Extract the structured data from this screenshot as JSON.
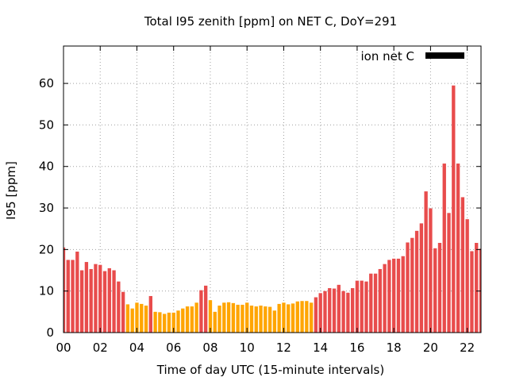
{
  "chart_data": {
    "type": "bar",
    "title": "Total I95 zenith [ppm] on NET C, DoY=291",
    "xlabel": "Time of day UTC (15-minute intervals)",
    "ylabel": "I95 [ppm]",
    "xlim": [
      0,
      22.75
    ],
    "ylim": [
      0,
      69
    ],
    "grid": true,
    "x_ticks": [
      0,
      2,
      4,
      6,
      8,
      10,
      12,
      14,
      16,
      18,
      20,
      22
    ],
    "x_tick_labels": [
      "00",
      "02",
      "04",
      "06",
      "08",
      "10",
      "12",
      "14",
      "16",
      "18",
      "20",
      "22"
    ],
    "y_ticks": [
      0,
      10,
      20,
      30,
      40,
      50,
      60
    ],
    "y_tick_labels": [
      "0",
      "10",
      "20",
      "30",
      "40",
      "50",
      "60"
    ],
    "interval_hours": 0.25,
    "legend": {
      "label": "ion net C",
      "color": "#000000",
      "placement": "top-right"
    },
    "colors": {
      "high": "#e84c4c",
      "low": "#ffa500"
    },
    "series": [
      {
        "name": "I95",
        "values": [
          20.5,
          17.5,
          17.5,
          19.5,
          15,
          17,
          15.3,
          16.5,
          16.3,
          14.8,
          15.5,
          15,
          12.3,
          9.8,
          6.8,
          5.8,
          7.2,
          6.9,
          6.5,
          8.8,
          5,
          4.9,
          4.5,
          4.8,
          4.8,
          5.3,
          5.8,
          6.3,
          6.3,
          7.2,
          10.2,
          11.3,
          7.8,
          5,
          6.5,
          7.2,
          7.3,
          7.1,
          6.7,
          6.7,
          7.2,
          6.5,
          6.3,
          6.5,
          6.3,
          6.2,
          5.3,
          6.9,
          7.2,
          6.8,
          7.0,
          7.5,
          7.6,
          7.6,
          7.2,
          8.5,
          9.5,
          10.0,
          10.7,
          10.6,
          11.5,
          10.0,
          9.6,
          10.7,
          12.5,
          12.5,
          12.3,
          14.2,
          14.2,
          15.3,
          16.5,
          17.5,
          17.8,
          17.8,
          18.4,
          21.7,
          22.8,
          24.5,
          26.3,
          34.0,
          29.9,
          20.3,
          21.6,
          40.7,
          28.8,
          59.5,
          40.7,
          32.6,
          27.3,
          19.6,
          21.6,
          20.2
        ]
      }
    ],
    "bar_color_flags": [
      "high",
      "high",
      "high",
      "high",
      "high",
      "high",
      "high",
      "high",
      "high",
      "high",
      "high",
      "high",
      "high",
      "high",
      "low",
      "low",
      "low",
      "low",
      "low",
      "high",
      "low",
      "low",
      "low",
      "low",
      "low",
      "low",
      "low",
      "low",
      "low",
      "low",
      "high",
      "high",
      "low",
      "low",
      "low",
      "low",
      "low",
      "low",
      "low",
      "low",
      "low",
      "low",
      "low",
      "low",
      "low",
      "low",
      "low",
      "low",
      "low",
      "low",
      "low",
      "low",
      "low",
      "low",
      "low",
      "high",
      "high",
      "high",
      "high",
      "high",
      "high",
      "high",
      "high",
      "high",
      "high",
      "high",
      "high",
      "high",
      "high",
      "high",
      "high",
      "high",
      "high",
      "high",
      "high",
      "high",
      "high",
      "high",
      "high",
      "high",
      "high",
      "high",
      "high",
      "high",
      "high",
      "high",
      "high",
      "high",
      "high",
      "high",
      "high",
      "high"
    ]
  }
}
